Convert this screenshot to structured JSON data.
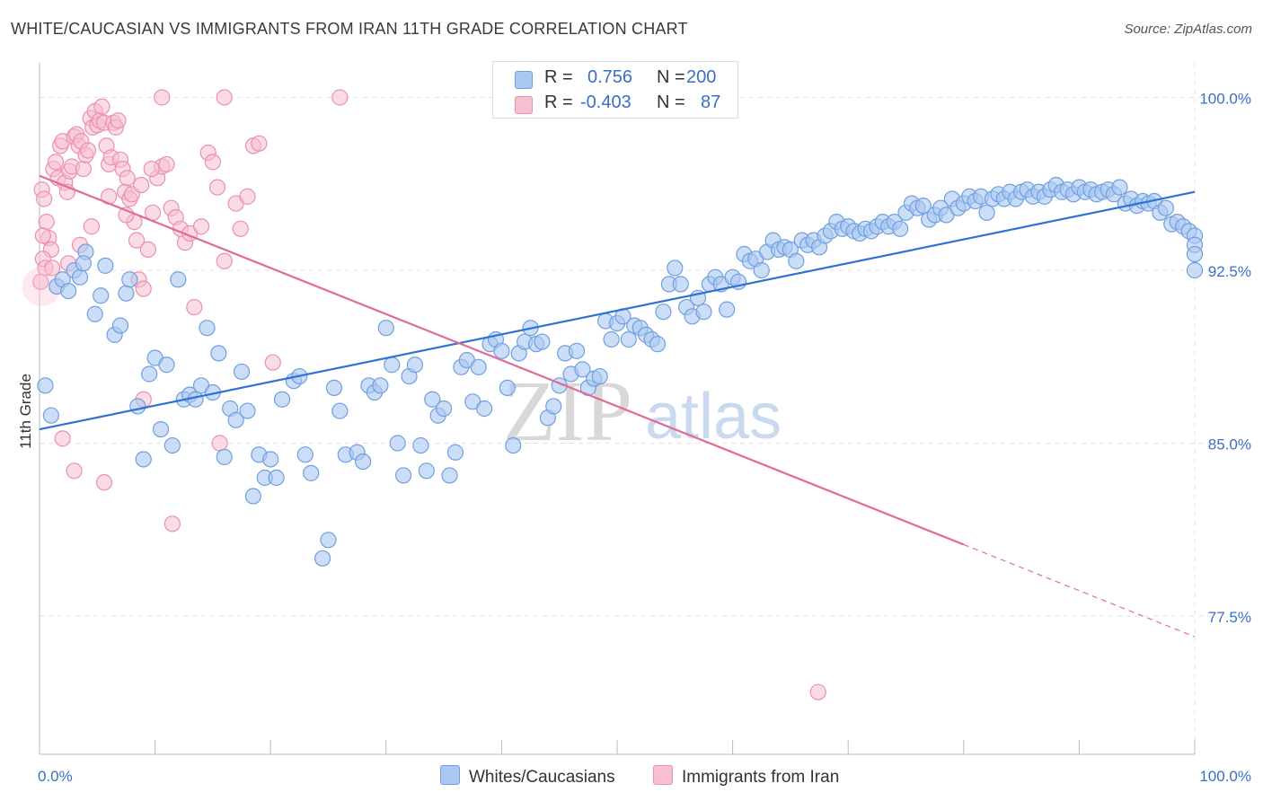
{
  "title": "WHITE/CAUCASIAN VS IMMIGRANTS FROM IRAN 11TH GRADE CORRELATION CHART",
  "source": "Source: ZipAtlas.com",
  "watermark": {
    "zip": "ZIP",
    "atlas": "atlas"
  },
  "legend_top": [
    {
      "r_label": "R =",
      "r_value": "0.756",
      "n_label": "N =",
      "n_value": "200"
    },
    {
      "r_label": "R =",
      "r_value": "-0.403",
      "n_label": "N =",
      "n_value": "87"
    }
  ],
  "legend_bottom": [
    "Whites/Caucasians",
    "Immigrants from Iran"
  ],
  "colors": {
    "blue_fill": "#aac8f2",
    "blue_stroke": "#6f9fe0",
    "blue_line": "#2f72d4",
    "pink_fill": "#f8bfd0",
    "pink_stroke": "#ec8fae",
    "pink_line": "#e26a98",
    "axis_text": "#3b6fc6",
    "grid": "#e3e3e3"
  },
  "chart_data": {
    "type": "scatter",
    "title": "WHITE/CAUCASIAN VS IMMIGRANTS FROM IRAN 11TH GRADE CORRELATION CHART",
    "xlabel": "",
    "ylabel": "11th Grade",
    "xlim": [
      0,
      100
    ],
    "ylim": [
      71.5,
      101.5
    ],
    "x_tick_labels": [
      "0.0%",
      "100.0%"
    ],
    "y_ticks": [
      77.5,
      85.0,
      92.5,
      100.0
    ],
    "y_tick_labels": [
      "77.5%",
      "85.0%",
      "92.5%",
      "100.0%"
    ],
    "grid": true,
    "series": [
      {
        "name": "Whites/Caucasians",
        "R": 0.756,
        "N": 200,
        "trend": {
          "x": [
            0,
            100
          ],
          "y": [
            85.6,
            95.9
          ]
        },
        "points": [
          [
            0.5,
            87.5
          ],
          [
            1.0,
            86.2
          ],
          [
            1.5,
            91.8
          ],
          [
            2.0,
            92.1
          ],
          [
            2.5,
            91.6
          ],
          [
            3.0,
            92.5
          ],
          [
            3.5,
            92.2
          ],
          [
            4.0,
            93.3
          ],
          [
            3.8,
            92.8
          ],
          [
            4.8,
            90.6
          ],
          [
            5.3,
            91.4
          ],
          [
            5.7,
            92.7
          ],
          [
            6.5,
            89.7
          ],
          [
            7.0,
            90.1
          ],
          [
            7.5,
            91.5
          ],
          [
            7.8,
            92.1
          ],
          [
            8.5,
            86.6
          ],
          [
            9.0,
            84.3
          ],
          [
            9.5,
            88.0
          ],
          [
            10.0,
            88.7
          ],
          [
            10.5,
            85.6
          ],
          [
            11.0,
            88.4
          ],
          [
            11.5,
            84.9
          ],
          [
            12.0,
            92.1
          ],
          [
            12.5,
            86.9
          ],
          [
            13.0,
            87.1
          ],
          [
            13.5,
            86.9
          ],
          [
            14.0,
            87.5
          ],
          [
            14.5,
            90.0
          ],
          [
            15.0,
            87.2
          ],
          [
            15.5,
            88.9
          ],
          [
            16.0,
            84.4
          ],
          [
            16.5,
            86.5
          ],
          [
            17.0,
            86.0
          ],
          [
            17.5,
            88.1
          ],
          [
            18.0,
            86.4
          ],
          [
            18.5,
            82.7
          ],
          [
            19.0,
            84.5
          ],
          [
            19.5,
            83.5
          ],
          [
            20.0,
            84.3
          ],
          [
            20.5,
            83.5
          ],
          [
            21.0,
            86.9
          ],
          [
            22.0,
            87.7
          ],
          [
            22.5,
            87.9
          ],
          [
            23.0,
            84.5
          ],
          [
            23.5,
            83.7
          ],
          [
            24.5,
            80.0
          ],
          [
            25.0,
            80.8
          ],
          [
            25.5,
            87.4
          ],
          [
            26.0,
            86.4
          ],
          [
            26.5,
            84.5
          ],
          [
            27.5,
            84.6
          ],
          [
            28.0,
            84.2
          ],
          [
            28.5,
            87.5
          ],
          [
            29.0,
            87.2
          ],
          [
            29.5,
            87.5
          ],
          [
            30.0,
            90.0
          ],
          [
            30.5,
            88.4
          ],
          [
            31.0,
            85.0
          ],
          [
            31.5,
            83.6
          ],
          [
            32.0,
            87.9
          ],
          [
            32.5,
            88.4
          ],
          [
            33.0,
            84.9
          ],
          [
            33.5,
            83.8
          ],
          [
            34.0,
            86.9
          ],
          [
            34.5,
            86.2
          ],
          [
            35.0,
            86.5
          ],
          [
            35.5,
            83.6
          ],
          [
            36.0,
            84.6
          ],
          [
            36.5,
            88.3
          ],
          [
            37.0,
            88.6
          ],
          [
            37.5,
            86.8
          ],
          [
            38.0,
            88.3
          ],
          [
            38.5,
            86.5
          ],
          [
            39.0,
            89.3
          ],
          [
            39.5,
            89.5
          ],
          [
            40.0,
            89.0
          ],
          [
            40.5,
            87.4
          ],
          [
            41.0,
            84.9
          ],
          [
            41.5,
            88.9
          ],
          [
            42.0,
            89.4
          ],
          [
            42.5,
            90.0
          ],
          [
            43.0,
            89.3
          ],
          [
            43.5,
            89.4
          ],
          [
            44.0,
            86.1
          ],
          [
            44.5,
            86.6
          ],
          [
            45.0,
            87.5
          ],
          [
            45.5,
            88.9
          ],
          [
            46.0,
            88.0
          ],
          [
            46.5,
            89.0
          ],
          [
            47.0,
            88.2
          ],
          [
            47.5,
            87.4
          ],
          [
            48.0,
            87.8
          ],
          [
            48.5,
            87.9
          ],
          [
            49.0,
            90.3
          ],
          [
            49.5,
            89.5
          ],
          [
            50.0,
            90.2
          ],
          [
            50.5,
            90.5
          ],
          [
            51.0,
            89.5
          ],
          [
            51.5,
            90.1
          ],
          [
            52.0,
            90.0
          ],
          [
            52.5,
            89.7
          ],
          [
            53.0,
            89.5
          ],
          [
            53.5,
            89.3
          ],
          [
            54.0,
            90.7
          ],
          [
            54.5,
            91.9
          ],
          [
            55.0,
            92.6
          ],
          [
            55.5,
            91.9
          ],
          [
            56.0,
            90.9
          ],
          [
            56.5,
            90.5
          ],
          [
            57.0,
            91.3
          ],
          [
            57.5,
            90.7
          ],
          [
            58.0,
            91.9
          ],
          [
            58.5,
            92.2
          ],
          [
            59.0,
            91.9
          ],
          [
            59.5,
            90.8
          ],
          [
            60.0,
            92.2
          ],
          [
            60.5,
            92.0
          ],
          [
            61.0,
            93.2
          ],
          [
            61.5,
            92.9
          ],
          [
            62.0,
            93.0
          ],
          [
            62.5,
            92.5
          ],
          [
            63.0,
            93.3
          ],
          [
            63.5,
            93.8
          ],
          [
            64.0,
            93.4
          ],
          [
            64.5,
            93.5
          ],
          [
            65.0,
            93.4
          ],
          [
            65.5,
            92.9
          ],
          [
            66.0,
            93.8
          ],
          [
            66.5,
            93.6
          ],
          [
            67.0,
            93.8
          ],
          [
            67.5,
            93.5
          ],
          [
            68.0,
            94.0
          ],
          [
            68.5,
            94.2
          ],
          [
            69.0,
            94.6
          ],
          [
            69.5,
            94.3
          ],
          [
            70.0,
            94.4
          ],
          [
            70.5,
            94.2
          ],
          [
            71.0,
            94.1
          ],
          [
            71.5,
            94.3
          ],
          [
            72.0,
            94.2
          ],
          [
            72.5,
            94.4
          ],
          [
            73.0,
            94.6
          ],
          [
            73.5,
            94.4
          ],
          [
            74.0,
            94.6
          ],
          [
            74.5,
            94.3
          ],
          [
            75.0,
            95.0
          ],
          [
            75.5,
            95.4
          ],
          [
            76.0,
            95.2
          ],
          [
            76.5,
            95.3
          ],
          [
            77.0,
            94.7
          ],
          [
            77.5,
            94.9
          ],
          [
            78.0,
            95.2
          ],
          [
            78.5,
            94.9
          ],
          [
            79.0,
            95.6
          ],
          [
            79.5,
            95.2
          ],
          [
            80.0,
            95.4
          ],
          [
            80.5,
            95.7
          ],
          [
            81.0,
            95.5
          ],
          [
            81.5,
            95.7
          ],
          [
            82.0,
            95.0
          ],
          [
            82.5,
            95.6
          ],
          [
            83.0,
            95.8
          ],
          [
            83.5,
            95.6
          ],
          [
            84.0,
            95.9
          ],
          [
            84.5,
            95.6
          ],
          [
            85.0,
            95.9
          ],
          [
            85.5,
            96.0
          ],
          [
            86.0,
            95.7
          ],
          [
            86.5,
            95.9
          ],
          [
            87.0,
            95.7
          ],
          [
            87.5,
            96.0
          ],
          [
            88.0,
            96.2
          ],
          [
            88.5,
            95.9
          ],
          [
            89.0,
            96.0
          ],
          [
            89.5,
            95.8
          ],
          [
            90.0,
            96.1
          ],
          [
            90.5,
            95.9
          ],
          [
            91.0,
            96.0
          ],
          [
            91.5,
            95.8
          ],
          [
            92.0,
            95.9
          ],
          [
            92.5,
            96.0
          ],
          [
            93.0,
            95.8
          ],
          [
            93.5,
            96.1
          ],
          [
            94.0,
            95.4
          ],
          [
            94.5,
            95.6
          ],
          [
            95.0,
            95.3
          ],
          [
            95.5,
            95.5
          ],
          [
            96.0,
            95.4
          ],
          [
            96.5,
            95.5
          ],
          [
            97.0,
            95.0
          ],
          [
            97.5,
            95.2
          ],
          [
            98.0,
            94.5
          ],
          [
            98.5,
            94.6
          ],
          [
            99.0,
            94.4
          ],
          [
            99.5,
            94.2
          ],
          [
            100.0,
            94.0
          ],
          [
            100.0,
            93.6
          ],
          [
            100.0,
            92.5
          ],
          [
            100.0,
            93.2
          ]
        ]
      },
      {
        "name": "Immigrants from Iran",
        "R": -0.403,
        "N": 87,
        "trend": {
          "x": [
            0,
            80
          ],
          "y": [
            96.6,
            80.6
          ]
        },
        "trend_dashed": {
          "x": [
            80,
            100
          ],
          "y": [
            80.6,
            76.6
          ]
        },
        "points": [
          [
            0.2,
            96.0
          ],
          [
            0.4,
            95.6
          ],
          [
            0.6,
            94.6
          ],
          [
            0.8,
            93.9
          ],
          [
            1.0,
            93.4
          ],
          [
            0.3,
            93.0
          ],
          [
            0.5,
            92.6
          ],
          [
            1.2,
            96.9
          ],
          [
            1.4,
            97.2
          ],
          [
            1.6,
            96.5
          ],
          [
            1.8,
            97.9
          ],
          [
            2.0,
            98.1
          ],
          [
            2.2,
            96.3
          ],
          [
            2.4,
            95.9
          ],
          [
            2.6,
            96.8
          ],
          [
            2.8,
            97.0
          ],
          [
            3.0,
            98.3
          ],
          [
            3.2,
            98.4
          ],
          [
            3.4,
            97.9
          ],
          [
            3.6,
            98.1
          ],
          [
            3.8,
            96.9
          ],
          [
            4.0,
            97.5
          ],
          [
            4.2,
            97.7
          ],
          [
            4.4,
            99.1
          ],
          [
            4.6,
            98.7
          ],
          [
            4.8,
            99.4
          ],
          [
            5.0,
            98.8
          ],
          [
            5.2,
            99.0
          ],
          [
            5.4,
            99.6
          ],
          [
            5.6,
            98.9
          ],
          [
            5.8,
            97.9
          ],
          [
            6.0,
            97.1
          ],
          [
            6.2,
            97.4
          ],
          [
            6.4,
            98.9
          ],
          [
            6.6,
            98.7
          ],
          [
            6.8,
            99.0
          ],
          [
            7.0,
            97.3
          ],
          [
            7.2,
            96.9
          ],
          [
            7.4,
            95.9
          ],
          [
            7.6,
            96.5
          ],
          [
            7.8,
            95.6
          ],
          [
            8.0,
            95.8
          ],
          [
            8.2,
            94.6
          ],
          [
            8.4,
            93.8
          ],
          [
            8.6,
            92.1
          ],
          [
            9.0,
            91.7
          ],
          [
            9.4,
            93.4
          ],
          [
            9.8,
            95.0
          ],
          [
            10.2,
            96.5
          ],
          [
            10.6,
            97.0
          ],
          [
            11.0,
            97.1
          ],
          [
            11.4,
            95.2
          ],
          [
            11.8,
            94.8
          ],
          [
            12.2,
            94.3
          ],
          [
            12.6,
            93.7
          ],
          [
            13.0,
            94.1
          ],
          [
            13.4,
            90.9
          ],
          [
            14.0,
            94.4
          ],
          [
            14.6,
            97.6
          ],
          [
            15.0,
            97.2
          ],
          [
            15.4,
            96.1
          ],
          [
            16.0,
            92.9
          ],
          [
            17.0,
            95.4
          ],
          [
            17.4,
            94.3
          ],
          [
            18.0,
            95.7
          ],
          [
            18.5,
            97.9
          ],
          [
            19.0,
            98.0
          ],
          [
            2.0,
            85.2
          ],
          [
            3.0,
            83.8
          ],
          [
            5.6,
            83.3
          ],
          [
            9.0,
            86.9
          ],
          [
            11.5,
            81.5
          ],
          [
            15.6,
            85.0
          ],
          [
            20.2,
            88.5
          ],
          [
            26.0,
            100.0
          ],
          [
            16.0,
            100.0
          ],
          [
            10.6,
            100.0
          ],
          [
            67.4,
            74.2
          ],
          [
            0.1,
            92.0
          ],
          [
            0.3,
            94.0
          ],
          [
            1.1,
            92.6
          ],
          [
            2.5,
            92.8
          ],
          [
            3.5,
            93.6
          ],
          [
            4.5,
            94.4
          ],
          [
            6.0,
            95.7
          ],
          [
            7.5,
            94.9
          ],
          [
            8.8,
            96.2
          ],
          [
            9.7,
            96.9
          ]
        ]
      }
    ]
  }
}
